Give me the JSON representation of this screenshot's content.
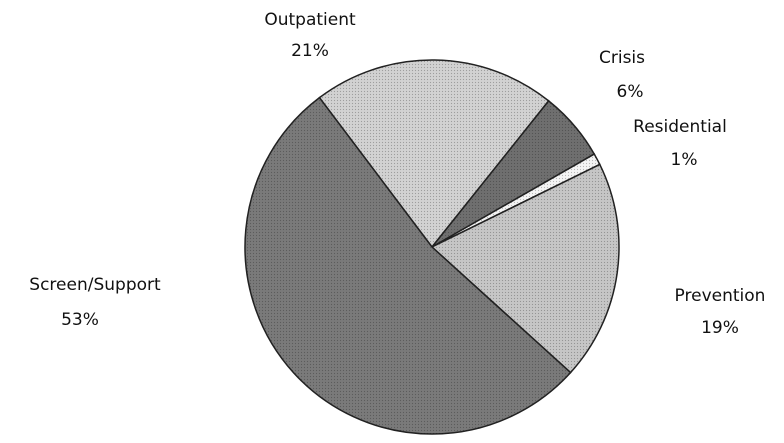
{
  "chart_data": {
    "type": "pie",
    "categories": [
      "Outpatient",
      "Crisis",
      "Residential",
      "Prevention",
      "Screen/Support"
    ],
    "values": [
      21,
      6,
      1,
      19,
      53
    ],
    "value_labels": [
      "21%",
      "6%",
      "1%",
      "19%",
      "53%"
    ],
    "colors": [
      "#d2d2d2",
      "#6f6f6f",
      "#f4f4f4",
      "#c6c6c6",
      "#7a7a7a"
    ]
  }
}
